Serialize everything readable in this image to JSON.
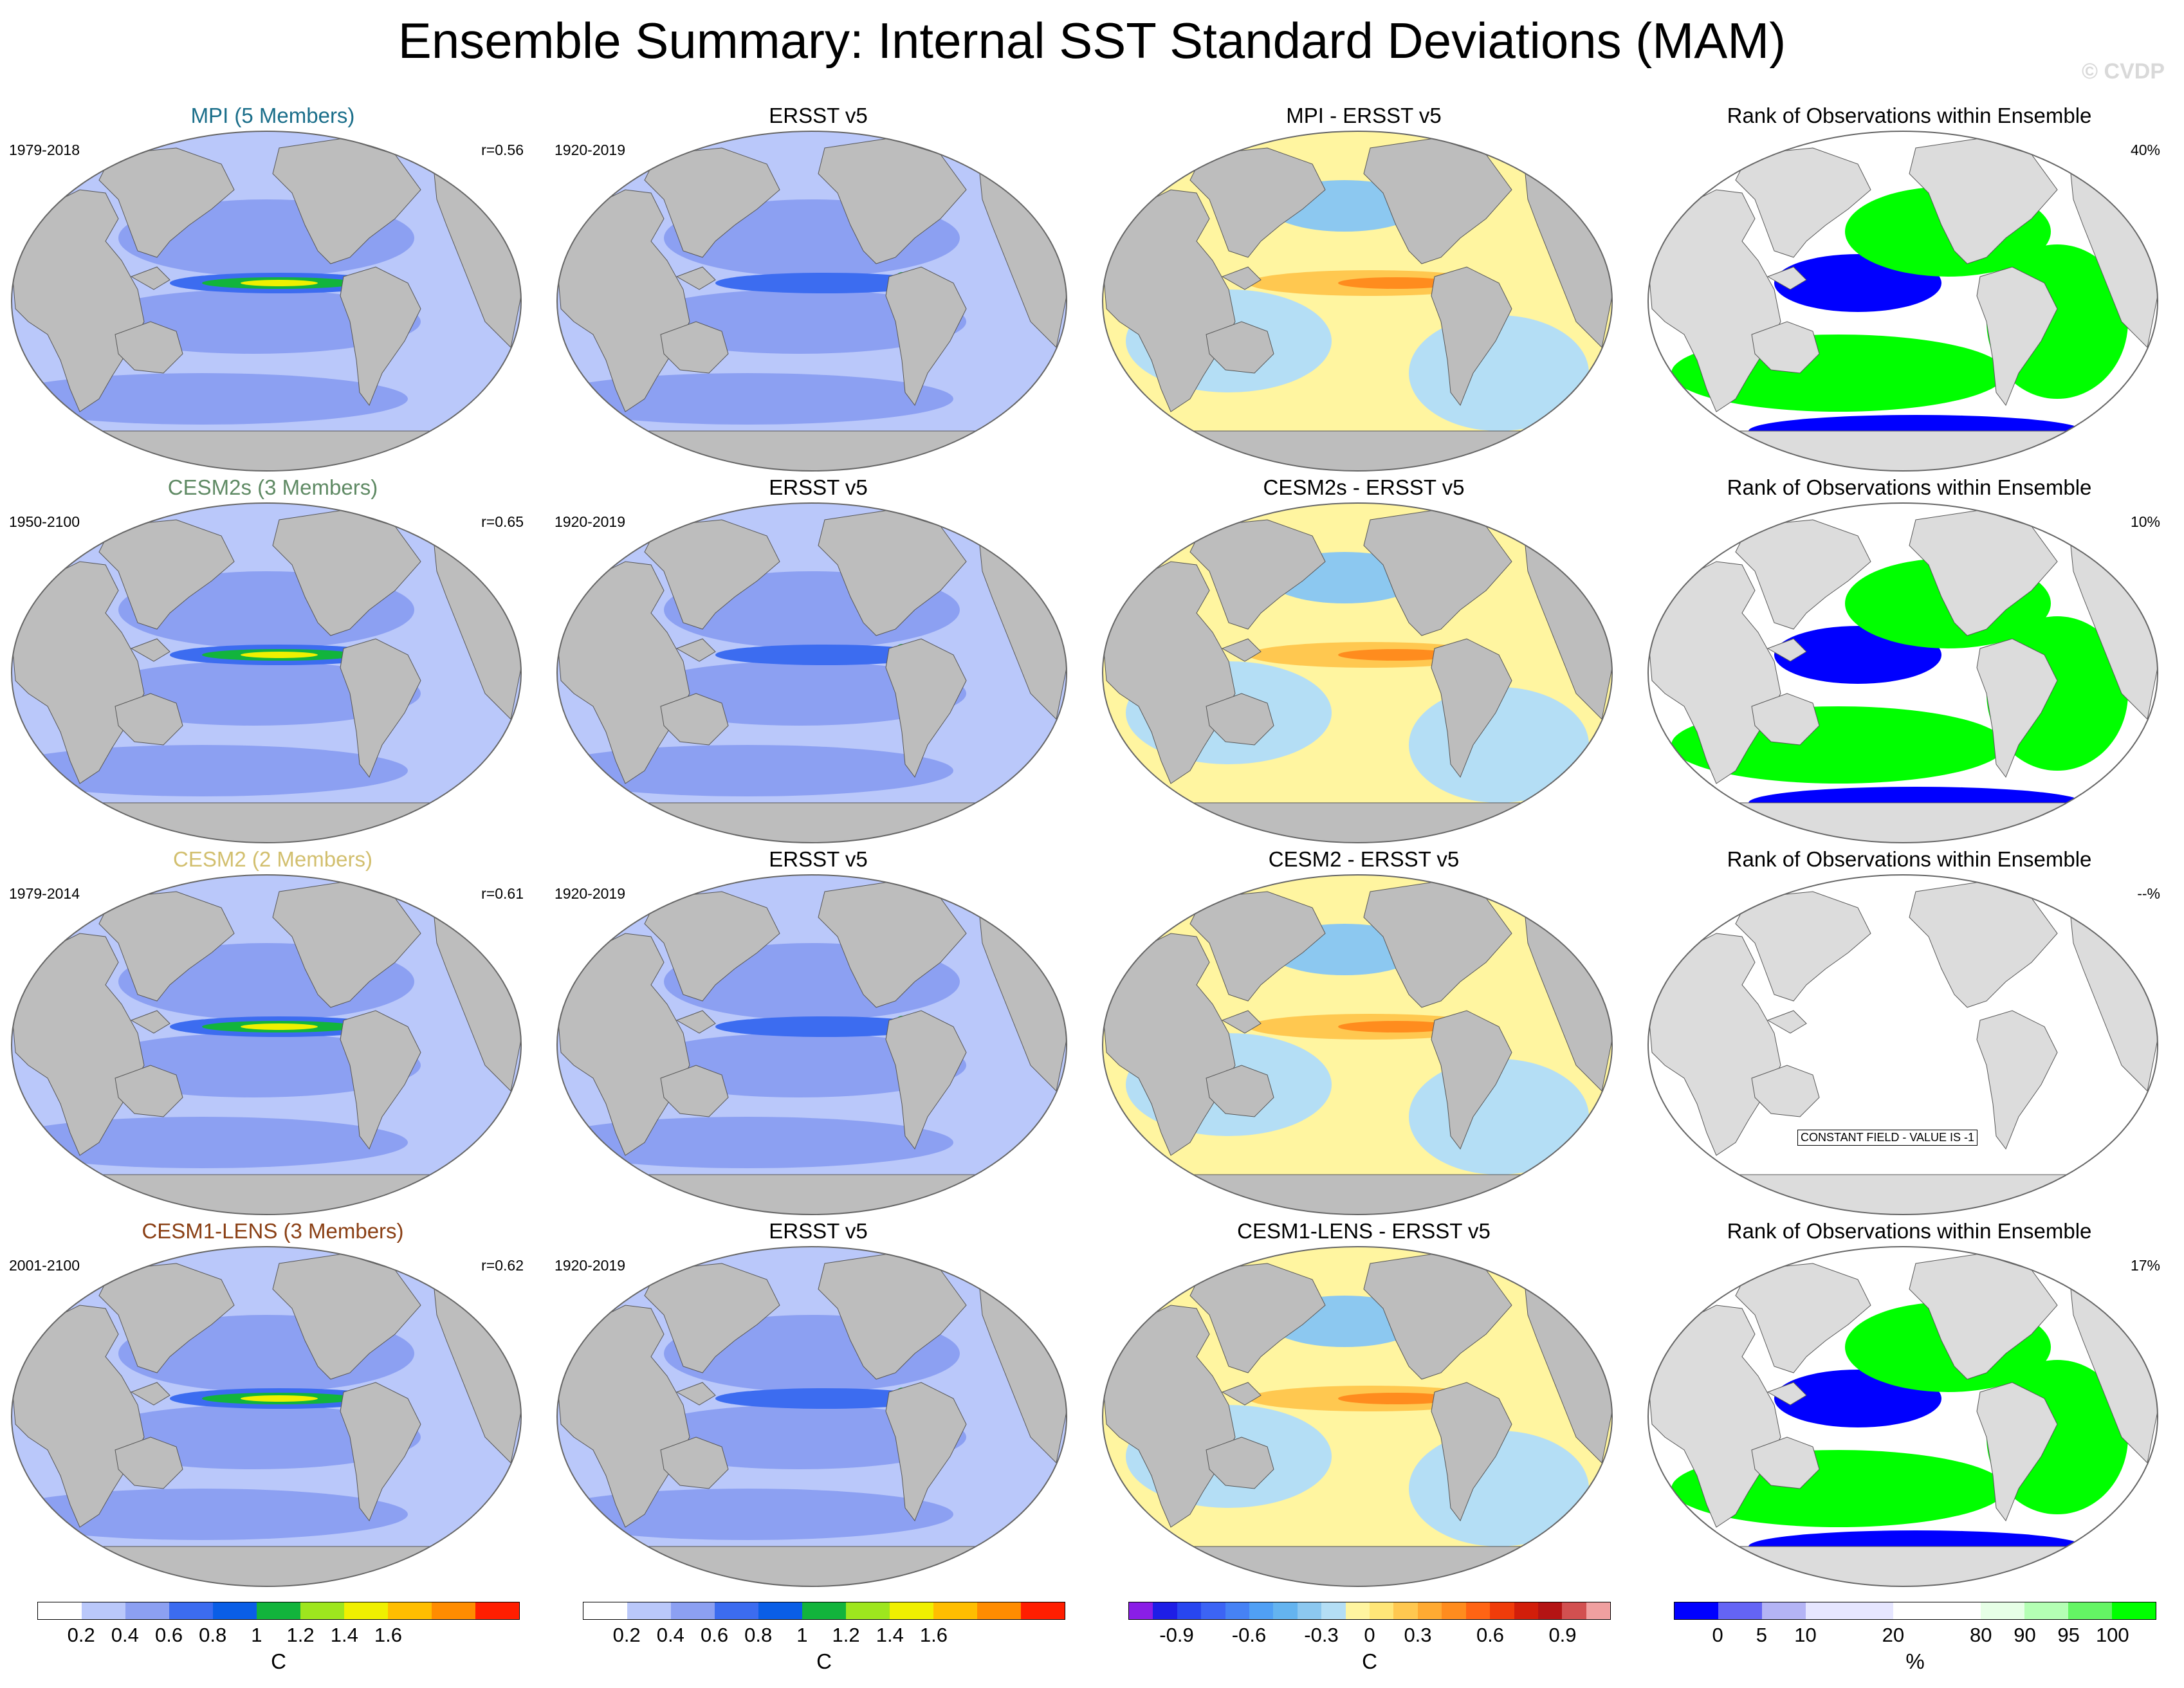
{
  "title": "Ensemble Summary: Internal SST Standard Deviations (MAM)",
  "watermark": "© CVDP",
  "colors": {
    "ocean_base": "#bac8fa",
    "land": "#bdbdbd",
    "rank_land": "#dcdcdc"
  },
  "rows": [
    {
      "model_title": "MPI (5 Members)",
      "model_color": "#1a6e8a",
      "model_years": "1979-2018",
      "pattern_corr": "r=0.56",
      "obs_title": "ERSST v5",
      "obs_years": "1920-2019",
      "diff_title": "MPI - ERSST v5",
      "rank_title": "Rank of Observations within Ensemble",
      "rank_value": "40%",
      "rank_constant": null
    },
    {
      "model_title": "CESM2s (3 Members)",
      "model_color": "#5f8a64",
      "model_years": "1950-2100",
      "pattern_corr": "r=0.65",
      "obs_title": "ERSST v5",
      "obs_years": "1920-2019",
      "diff_title": "CESM2s - ERSST v5",
      "rank_title": "Rank of Observations within Ensemble",
      "rank_value": "10%",
      "rank_constant": null
    },
    {
      "model_title": "CESM2 (2 Members)",
      "model_color": "#d2bf6e",
      "model_years": "1979-2014",
      "pattern_corr": "r=0.61",
      "obs_title": "ERSST v5",
      "obs_years": "1920-2019",
      "diff_title": "CESM2 - ERSST v5",
      "rank_title": "Rank of Observations within Ensemble",
      "rank_value": "--%",
      "rank_constant": "CONSTANT FIELD - VALUE IS -1"
    },
    {
      "model_title": "CESM1-LENS (3 Members)",
      "model_color": "#8a3f14",
      "model_years": "2001-2100",
      "pattern_corr": "r=0.62",
      "obs_title": "ERSST v5",
      "obs_years": "1920-2019",
      "diff_title": "CESM1-LENS - ERSST v5",
      "rank_title": "Rank of Observations within Ensemble",
      "rank_value": "17%",
      "rank_constant": null
    }
  ],
  "colorbars": [
    {
      "name": "std-dev-colorbar-1",
      "unit": "C",
      "swatches": [
        "#ffffff",
        "#bac8fa",
        "#8ca0f2",
        "#3c6cf0",
        "#0a5ee6",
        "#12b43c",
        "#9ee61e",
        "#f0f000",
        "#ffbe00",
        "#ff8c00",
        "#ff1e00"
      ],
      "ticks": [
        "0.2",
        "0.4",
        "0.6",
        "0.8",
        "1",
        "1.2",
        "1.4",
        "1.6"
      ],
      "tick_positions": [
        1,
        2,
        3,
        4,
        5,
        6,
        7,
        8
      ]
    },
    {
      "name": "std-dev-colorbar-2",
      "unit": "C",
      "swatches": [
        "#ffffff",
        "#bac8fa",
        "#8ca0f2",
        "#3c6cf0",
        "#0a5ee6",
        "#12b43c",
        "#9ee61e",
        "#f0f000",
        "#ffbe00",
        "#ff8c00",
        "#ff1e00"
      ],
      "ticks": [
        "0.2",
        "0.4",
        "0.6",
        "0.8",
        "1",
        "1.2",
        "1.4",
        "1.6"
      ],
      "tick_positions": [
        1,
        2,
        3,
        4,
        5,
        6,
        7,
        8
      ]
    },
    {
      "name": "difference-colorbar",
      "unit": "C",
      "swatches": [
        "#8a1ee6",
        "#1e1ee6",
        "#2846f0",
        "#3c64f5",
        "#4682f5",
        "#50a0f5",
        "#64b4f0",
        "#8cc8f0",
        "#b4def5",
        "#fff5a0",
        "#ffe678",
        "#ffc850",
        "#ffaa32",
        "#ff8c1e",
        "#ff6414",
        "#f03c0a",
        "#d21e0a",
        "#b41414",
        "#d25050",
        "#f0a0a0"
      ],
      "ticks": [
        "-0.9",
        "-0.6",
        "-0.3",
        "0",
        "0.3",
        "0.6",
        "0.9"
      ],
      "tick_positions": [
        2,
        5,
        8,
        10,
        12,
        15,
        18
      ]
    },
    {
      "name": "rank-colorbar",
      "unit": "%",
      "swatches": [
        "#0000ff",
        "#6464f5",
        "#b4b4f5",
        "#e6e6ff",
        "#e6e6ff",
        "#ffffff",
        "#ffffff",
        "#e6ffe6",
        "#b4ffb4",
        "#64f564",
        "#00ff00"
      ],
      "ticks": [
        "0",
        "5",
        "10",
        "20",
        "80",
        "90",
        "95",
        "100"
      ],
      "tick_positions": [
        1,
        2,
        3,
        5,
        7,
        8,
        9,
        10
      ]
    }
  ]
}
